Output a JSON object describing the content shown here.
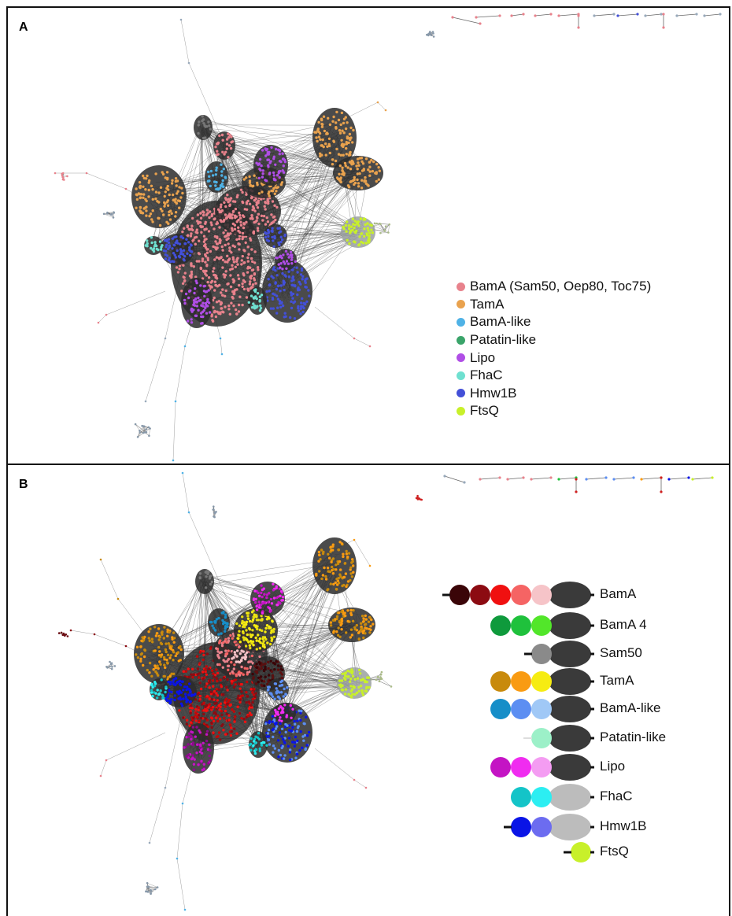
{
  "panel_a": {
    "letter": "A",
    "legend": [
      {
        "label": "BamA (Sam50, Oep80, Toc75)",
        "color": "#e8828c"
      },
      {
        "label": "TamA",
        "color": "#e9a24e"
      },
      {
        "label": "BamA-like",
        "color": "#4fb2e6"
      },
      {
        "label": "Patatin-like",
        "color": "#3aa46a"
      },
      {
        "label": "Lipo",
        "color": "#b04ee6"
      },
      {
        "label": "FhaC",
        "color": "#6fe0d0"
      },
      {
        "label": "Hmw1B",
        "color": "#4350d8"
      },
      {
        "label": "FtsQ",
        "color": "#c8f02a"
      }
    ]
  },
  "panel_b": {
    "letter": "B",
    "domain_legend": [
      {
        "label": "BamA",
        "left_bar": true,
        "circles": [
          "#3a0508",
          "#8c0b12",
          "#f01010",
          "#f56464",
          "#f6c4c8"
        ],
        "barrel": "#3a3a3a"
      },
      {
        "label": "BamA 4",
        "left_bar": false,
        "circles": [
          "#0f9a3c",
          "#1fc13c",
          "#52e62a"
        ],
        "barrel": "#3a3a3a"
      },
      {
        "label": "Sam50",
        "left_bar": true,
        "circles": [
          "#8a8a8a"
        ],
        "barrel": "#3a3a3a"
      },
      {
        "label": "TamA",
        "left_bar": false,
        "circles": [
          "#c88a0c",
          "#f99b12",
          "#f6ec12"
        ],
        "barrel": "#3a3a3a"
      },
      {
        "label": "BamA-like",
        "left_bar": false,
        "circles": [
          "#168ec8",
          "#5c8ef2",
          "#a0c8f6"
        ],
        "barrel": "#3a3a3a"
      },
      {
        "label": "Patatin-like",
        "left_bar": false,
        "faint_bar": true,
        "circles": [
          "#9cf0c8"
        ],
        "barrel": "#3a3a3a"
      },
      {
        "label": "Lipo",
        "left_bar": false,
        "circles": [
          "#c414c4",
          "#f02cf0",
          "#f49cf2"
        ],
        "barrel": "#3a3a3a"
      },
      {
        "label": "FhaC",
        "left_bar": false,
        "circles": [
          "#14c4c8",
          "#2ceef2"
        ],
        "barrel": "#bcbcbc"
      },
      {
        "label": "Hmw1B",
        "left_bar": true,
        "circles": [
          "#0a14e6",
          "#6c6cf0"
        ],
        "barrel": "#bcbcbc"
      },
      {
        "label": "FtsQ",
        "left_bar": true,
        "circles": [
          "#c8f02a"
        ],
        "barrel": null
      }
    ]
  }
}
